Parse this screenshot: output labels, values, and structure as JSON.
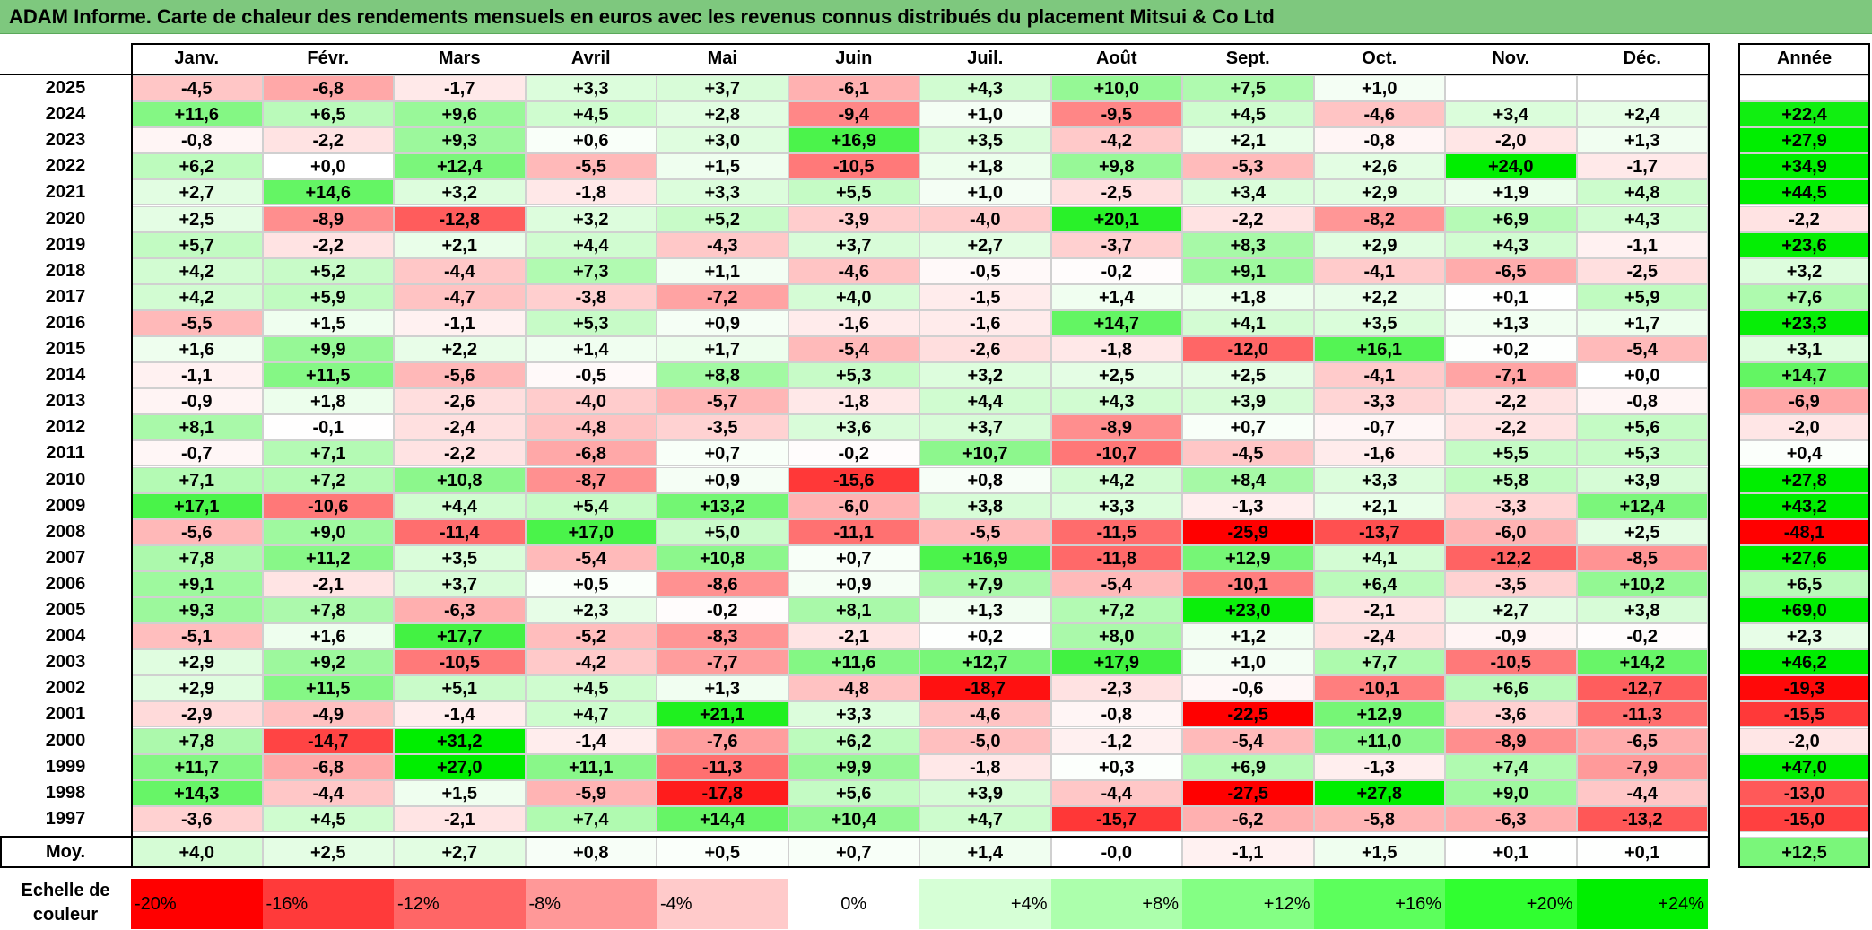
{
  "title": "ADAM Informe. Carte de chaleur des rendements mensuels en euros avec les revenus connus distribués du placement Mitsui & Co Ltd",
  "chart_data": {
    "type": "heatmap",
    "columns": [
      "Janv.",
      "Févr.",
      "Mars",
      "Avril",
      "Mai",
      "Juin",
      "Juil.",
      "Août",
      "Sept.",
      "Oct.",
      "Nov.",
      "Déc."
    ],
    "year_column_label": "Année",
    "rows": [
      {
        "year": "2025",
        "values": [
          "-4,5",
          "-6,8",
          "-1,7",
          "+3,3",
          "+3,7",
          "-6,1",
          "+4,3",
          "+10,0",
          "+7,5",
          "+1,0",
          "",
          ""
        ],
        "annual": ""
      },
      {
        "year": "2024",
        "values": [
          "+11,6",
          "+6,5",
          "+9,6",
          "+4,5",
          "+2,8",
          "-9,4",
          "+1,0",
          "-9,5",
          "+4,5",
          "-4,6",
          "+3,4",
          "+2,4"
        ],
        "annual": "+22,4"
      },
      {
        "year": "2023",
        "values": [
          "-0,8",
          "-2,2",
          "+9,3",
          "+0,6",
          "+3,0",
          "+16,9",
          "+3,5",
          "-4,2",
          "+2,1",
          "-0,8",
          "-2,0",
          "+1,3"
        ],
        "annual": "+27,9"
      },
      {
        "year": "2022",
        "values": [
          "+6,2",
          "+0,0",
          "+12,4",
          "-5,5",
          "+1,5",
          "-10,5",
          "+1,8",
          "+9,8",
          "-5,3",
          "+2,6",
          "+24,0",
          "-1,7"
        ],
        "annual": "+34,9"
      },
      {
        "year": "2021",
        "values": [
          "+2,7",
          "+14,6",
          "+3,2",
          "-1,8",
          "+3,3",
          "+5,5",
          "+1,0",
          "-2,5",
          "+3,4",
          "+2,9",
          "+1,9",
          "+4,8"
        ],
        "annual": "+44,5"
      },
      {
        "year": "2020",
        "values": [
          "+2,5",
          "-8,9",
          "-12,8",
          "+3,2",
          "+5,2",
          "-3,9",
          "-4,0",
          "+20,1",
          "-2,2",
          "-8,2",
          "+6,9",
          "+4,3"
        ],
        "annual": "-2,2"
      },
      {
        "year": "2019",
        "values": [
          "+5,7",
          "-2,2",
          "+2,1",
          "+4,4",
          "-4,3",
          "+3,7",
          "+2,7",
          "-3,7",
          "+8,3",
          "+2,9",
          "+4,3",
          "-1,1"
        ],
        "annual": "+23,6"
      },
      {
        "year": "2018",
        "values": [
          "+4,2",
          "+5,2",
          "-4,4",
          "+7,3",
          "+1,1",
          "-4,6",
          "-0,5",
          "-0,2",
          "+9,1",
          "-4,1",
          "-6,5",
          "-2,5"
        ],
        "annual": "+3,2"
      },
      {
        "year": "2017",
        "values": [
          "+4,2",
          "+5,9",
          "-4,7",
          "-3,8",
          "-7,2",
          "+4,0",
          "-1,5",
          "+1,4",
          "+1,8",
          "+2,2",
          "+0,1",
          "+5,9"
        ],
        "annual": "+7,6"
      },
      {
        "year": "2016",
        "values": [
          "-5,5",
          "+1,5",
          "-1,1",
          "+5,3",
          "+0,9",
          "-1,6",
          "-1,6",
          "+14,7",
          "+4,1",
          "+3,5",
          "+1,3",
          "+1,7"
        ],
        "annual": "+23,3"
      },
      {
        "year": "2015",
        "values": [
          "+1,6",
          "+9,9",
          "+2,2",
          "+1,4",
          "+1,7",
          "-5,4",
          "-2,6",
          "-1,8",
          "-12,0",
          "+16,1",
          "+0,2",
          "-5,4"
        ],
        "annual": "+3,1"
      },
      {
        "year": "2014",
        "values": [
          "-1,1",
          "+11,5",
          "-5,6",
          "-0,5",
          "+8,8",
          "+5,3",
          "+3,2",
          "+2,5",
          "+2,5",
          "-4,1",
          "-7,1",
          "+0,0"
        ],
        "annual": "+14,7"
      },
      {
        "year": "2013",
        "values": [
          "-0,9",
          "+1,8",
          "-2,6",
          "-4,0",
          "-5,7",
          "-1,8",
          "+4,4",
          "+4,3",
          "+3,9",
          "-3,3",
          "-2,2",
          "-0,8"
        ],
        "annual": "-6,9"
      },
      {
        "year": "2012",
        "values": [
          "+8,1",
          "-0,1",
          "-2,4",
          "-4,8",
          "-3,5",
          "+3,6",
          "+3,7",
          "-8,9",
          "+0,7",
          "-0,7",
          "-2,2",
          "+5,6"
        ],
        "annual": "-2,0"
      },
      {
        "year": "2011",
        "values": [
          "-0,7",
          "+7,1",
          "-2,2",
          "-6,8",
          "+0,7",
          "-0,2",
          "+10,7",
          "-10,7",
          "-4,5",
          "-1,6",
          "+5,5",
          "+5,3"
        ],
        "annual": "+0,4"
      },
      {
        "year": "2010",
        "values": [
          "+7,1",
          "+7,2",
          "+10,8",
          "-8,7",
          "+0,9",
          "-15,6",
          "+0,8",
          "+4,2",
          "+8,4",
          "+3,3",
          "+5,8",
          "+3,9"
        ],
        "annual": "+27,8"
      },
      {
        "year": "2009",
        "values": [
          "+17,1",
          "-10,6",
          "+4,4",
          "+5,4",
          "+13,2",
          "-6,0",
          "+3,8",
          "+3,3",
          "-1,3",
          "+2,1",
          "-3,3",
          "+12,4"
        ],
        "annual": "+43,2"
      },
      {
        "year": "2008",
        "values": [
          "-5,6",
          "+9,0",
          "-11,4",
          "+17,0",
          "+5,0",
          "-11,1",
          "-5,5",
          "-11,5",
          "-25,9",
          "-13,7",
          "-6,0",
          "+2,5"
        ],
        "annual": "-48,1"
      },
      {
        "year": "2007",
        "values": [
          "+7,8",
          "+11,2",
          "+3,5",
          "-5,4",
          "+10,8",
          "+0,7",
          "+16,9",
          "-11,8",
          "+12,9",
          "+4,1",
          "-12,2",
          "-8,5"
        ],
        "annual": "+27,6"
      },
      {
        "year": "2006",
        "values": [
          "+9,1",
          "-2,1",
          "+3,7",
          "+0,5",
          "-8,6",
          "+0,9",
          "+7,9",
          "-5,4",
          "-10,1",
          "+6,4",
          "-3,5",
          "+10,2"
        ],
        "annual": "+6,5"
      },
      {
        "year": "2005",
        "values": [
          "+9,3",
          "+7,8",
          "-6,3",
          "+2,3",
          "-0,2",
          "+8,1",
          "+1,3",
          "+7,2",
          "+23,0",
          "-2,1",
          "+2,7",
          "+3,8"
        ],
        "annual": "+69,0"
      },
      {
        "year": "2004",
        "values": [
          "-5,1",
          "+1,6",
          "+17,7",
          "-5,2",
          "-8,3",
          "-2,1",
          "+0,2",
          "+8,0",
          "+1,2",
          "-2,4",
          "-0,9",
          "-0,2"
        ],
        "annual": "+2,3"
      },
      {
        "year": "2003",
        "values": [
          "+2,9",
          "+9,2",
          "-10,5",
          "-4,2",
          "-7,7",
          "+11,6",
          "+12,7",
          "+17,9",
          "+1,0",
          "+7,7",
          "-10,5",
          "+14,2"
        ],
        "annual": "+46,2"
      },
      {
        "year": "2002",
        "values": [
          "+2,9",
          "+11,5",
          "+5,1",
          "+4,5",
          "+1,3",
          "-4,8",
          "-18,7",
          "-2,3",
          "-0,6",
          "-10,1",
          "+6,6",
          "-12,7"
        ],
        "annual": "-19,3"
      },
      {
        "year": "2001",
        "values": [
          "-2,9",
          "-4,9",
          "-1,4",
          "+4,7",
          "+21,1",
          "+3,3",
          "-4,6",
          "-0,8",
          "-22,5",
          "+12,9",
          "-3,6",
          "-11,3"
        ],
        "annual": "-15,5"
      },
      {
        "year": "2000",
        "values": [
          "+7,8",
          "-14,7",
          "+31,2",
          "-1,4",
          "-7,6",
          "+6,2",
          "-5,0",
          "-1,2",
          "-5,4",
          "+11,0",
          "-8,9",
          "-6,5"
        ],
        "annual": "-2,0"
      },
      {
        "year": "1999",
        "values": [
          "+11,7",
          "-6,8",
          "+27,0",
          "+11,1",
          "-11,3",
          "+9,9",
          "-1,8",
          "+0,3",
          "+6,9",
          "-1,3",
          "+7,4",
          "-7,9"
        ],
        "annual": "+47,0"
      },
      {
        "year": "1998",
        "values": [
          "+14,3",
          "-4,4",
          "+1,5",
          "-5,9",
          "-17,8",
          "+5,6",
          "+3,9",
          "-4,4",
          "-27,5",
          "+27,8",
          "+9,0",
          "-4,4"
        ],
        "annual": "-13,0"
      },
      {
        "year": "1997",
        "values": [
          "-3,6",
          "+4,5",
          "-2,1",
          "+7,4",
          "+14,4",
          "+10,4",
          "+4,7",
          "-15,7",
          "-6,2",
          "-5,8",
          "-6,3",
          "-13,2"
        ],
        "annual": "-15,0"
      }
    ],
    "average_row": {
      "label": "Moy.",
      "values": [
        "+4,0",
        "+2,5",
        "+2,7",
        "+0,8",
        "+0,5",
        "+0,7",
        "+1,4",
        "-0,0",
        "-1,1",
        "+1,5",
        "+0,1",
        "+0,1"
      ],
      "annual": "+12,5"
    },
    "legend": {
      "label": "Echelle de couleur",
      "steps": [
        "-20%",
        "-16%",
        "-12%",
        "-8%",
        "-4%",
        "0%",
        "+4%",
        "+8%",
        "+12%",
        "+16%",
        "+20%",
        "+24%"
      ],
      "colors": [
        "#ff0000",
        "#ff3a3a",
        "#ff6666",
        "#ff9898",
        "#ffcaca",
        "#ffffff",
        "#d6ffd6",
        "#acffac",
        "#84ff84",
        "#5cff5c",
        "#30ff30",
        "#00ef00"
      ]
    },
    "color_scale": {
      "min": -20,
      "max": 24,
      "negative_color": "#ff0000",
      "positive_color": "#00ee00",
      "neutral_color": "#ffffff"
    }
  }
}
